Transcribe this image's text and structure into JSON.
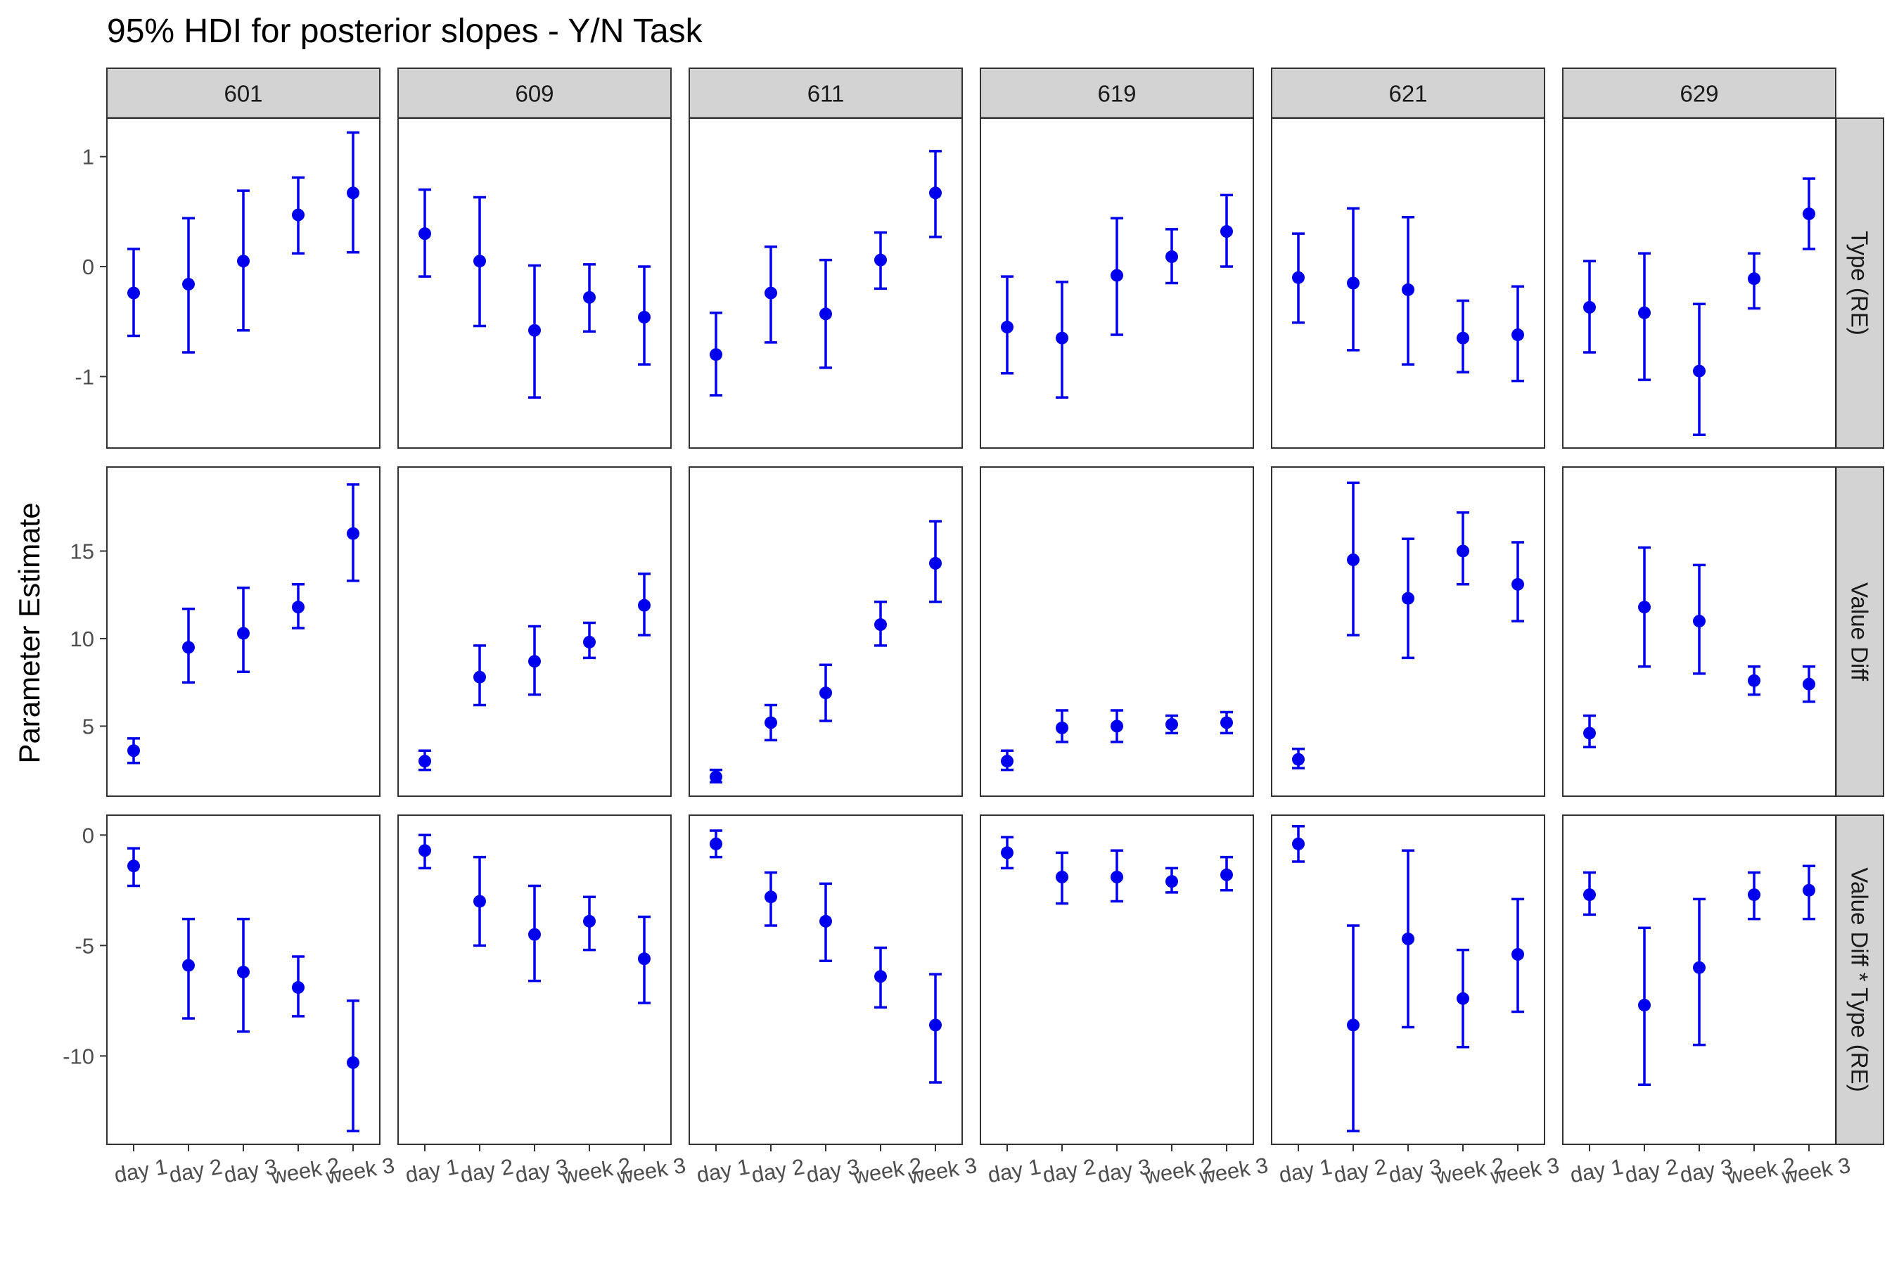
{
  "chart_data": {
    "type": "scatter",
    "title": "95% HDI for posterior slopes - Y/N Task",
    "ylabel": "Parameter Estimate",
    "xlabel": "",
    "facet_columns": [
      "601",
      "609",
      "611",
      "619",
      "621",
      "629"
    ],
    "facet_rows": [
      "Type (RE)",
      "Value Diff",
      "Value Diff * Type (RE)"
    ],
    "categories": [
      "day 1",
      "day 2",
      "day 3",
      "week 2",
      "week 3"
    ],
    "point_color": "#0000ee",
    "strip_color": "#d3d3d3",
    "grid": false,
    "rows": [
      {
        "name": "Type (RE)",
        "ylim": [
          -1.65,
          1.35
        ],
        "yticks": [
          1,
          0,
          -1
        ],
        "ytick_labels": [
          "1",
          "0",
          "-1"
        ],
        "panels": [
          {
            "column": "601",
            "points": [
              {
                "x": "day 1",
                "y": -0.24,
                "low": -0.63,
                "high": 0.16
              },
              {
                "x": "day 2",
                "y": -0.16,
                "low": -0.78,
                "high": 0.44
              },
              {
                "x": "day 3",
                "y": 0.05,
                "low": -0.58,
                "high": 0.69
              },
              {
                "x": "week 2",
                "y": 0.47,
                "low": 0.12,
                "high": 0.81
              },
              {
                "x": "week 3",
                "y": 0.67,
                "low": 0.13,
                "high": 1.22
              }
            ]
          },
          {
            "column": "609",
            "points": [
              {
                "x": "day 1",
                "y": 0.3,
                "low": -0.09,
                "high": 0.7
              },
              {
                "x": "day 2",
                "y": 0.05,
                "low": -0.54,
                "high": 0.63
              },
              {
                "x": "day 3",
                "y": -0.58,
                "low": -1.19,
                "high": 0.01
              },
              {
                "x": "week 2",
                "y": -0.28,
                "low": -0.59,
                "high": 0.02
              },
              {
                "x": "week 3",
                "y": -0.46,
                "low": -0.89,
                "high": 0.0
              }
            ]
          },
          {
            "column": "611",
            "points": [
              {
                "x": "day 1",
                "y": -0.8,
                "low": -1.17,
                "high": -0.42
              },
              {
                "x": "day 2",
                "y": -0.24,
                "low": -0.69,
                "high": 0.18
              },
              {
                "x": "day 3",
                "y": -0.43,
                "low": -0.92,
                "high": 0.06
              },
              {
                "x": "week 2",
                "y": 0.06,
                "low": -0.2,
                "high": 0.31
              },
              {
                "x": "week 3",
                "y": 0.67,
                "low": 0.27,
                "high": 1.05
              }
            ]
          },
          {
            "column": "619",
            "points": [
              {
                "x": "day 1",
                "y": -0.55,
                "low": -0.97,
                "high": -0.09
              },
              {
                "x": "day 2",
                "y": -0.65,
                "low": -1.19,
                "high": -0.14
              },
              {
                "x": "day 3",
                "y": -0.08,
                "low": -0.62,
                "high": 0.44
              },
              {
                "x": "week 2",
                "y": 0.09,
                "low": -0.15,
                "high": 0.34
              },
              {
                "x": "week 3",
                "y": 0.32,
                "low": 0.0,
                "high": 0.65
              }
            ]
          },
          {
            "column": "621",
            "points": [
              {
                "x": "day 1",
                "y": -0.1,
                "low": -0.51,
                "high": 0.3
              },
              {
                "x": "day 2",
                "y": -0.15,
                "low": -0.76,
                "high": 0.53
              },
              {
                "x": "day 3",
                "y": -0.21,
                "low": -0.89,
                "high": 0.45
              },
              {
                "x": "week 2",
                "y": -0.65,
                "low": -0.96,
                "high": -0.31
              },
              {
                "x": "week 3",
                "y": -0.62,
                "low": -1.04,
                "high": -0.18
              }
            ]
          },
          {
            "column": "629",
            "points": [
              {
                "x": "day 1",
                "y": -0.37,
                "low": -0.78,
                "high": 0.05
              },
              {
                "x": "day 2",
                "y": -0.42,
                "low": -1.03,
                "high": 0.12
              },
              {
                "x": "day 3",
                "y": -0.95,
                "low": -1.53,
                "high": -0.34
              },
              {
                "x": "week 2",
                "y": -0.11,
                "low": -0.38,
                "high": 0.12
              },
              {
                "x": "week 3",
                "y": 0.48,
                "low": 0.16,
                "high": 0.8
              }
            ]
          }
        ]
      },
      {
        "name": "Value Diff",
        "ylim": [
          1.0,
          19.8
        ],
        "yticks": [
          15,
          10,
          5
        ],
        "ytick_labels": [
          "15",
          "10",
          "5"
        ],
        "panels": [
          {
            "column": "601",
            "points": [
              {
                "x": "day 1",
                "y": 3.6,
                "low": 2.9,
                "high": 4.3
              },
              {
                "x": "day 2",
                "y": 9.5,
                "low": 7.5,
                "high": 11.7
              },
              {
                "x": "day 3",
                "y": 10.3,
                "low": 8.1,
                "high": 12.9
              },
              {
                "x": "week 2",
                "y": 11.8,
                "low": 10.6,
                "high": 13.1
              },
              {
                "x": "week 3",
                "y": 16.0,
                "low": 13.3,
                "high": 18.8
              }
            ]
          },
          {
            "column": "609",
            "points": [
              {
                "x": "day 1",
                "y": 3.0,
                "low": 2.5,
                "high": 3.6
              },
              {
                "x": "day 2",
                "y": 7.8,
                "low": 6.2,
                "high": 9.6
              },
              {
                "x": "day 3",
                "y": 8.7,
                "low": 6.8,
                "high": 10.7
              },
              {
                "x": "week 2",
                "y": 9.8,
                "low": 8.9,
                "high": 10.9
              },
              {
                "x": "week 3",
                "y": 11.9,
                "low": 10.2,
                "high": 13.7
              }
            ]
          },
          {
            "column": "611",
            "points": [
              {
                "x": "day 1",
                "y": 2.1,
                "low": 1.8,
                "high": 2.5
              },
              {
                "x": "day 2",
                "y": 5.2,
                "low": 4.2,
                "high": 6.2
              },
              {
                "x": "day 3",
                "y": 6.9,
                "low": 5.3,
                "high": 8.5
              },
              {
                "x": "week 2",
                "y": 10.8,
                "low": 9.6,
                "high": 12.1
              },
              {
                "x": "week 3",
                "y": 14.3,
                "low": 12.1,
                "high": 16.7
              }
            ]
          },
          {
            "column": "619",
            "points": [
              {
                "x": "day 1",
                "y": 3.0,
                "low": 2.5,
                "high": 3.6
              },
              {
                "x": "day 2",
                "y": 4.9,
                "low": 4.1,
                "high": 5.9
              },
              {
                "x": "day 3",
                "y": 5.0,
                "low": 4.1,
                "high": 5.9
              },
              {
                "x": "week 2",
                "y": 5.1,
                "low": 4.6,
                "high": 5.6
              },
              {
                "x": "week 3",
                "y": 5.2,
                "low": 4.6,
                "high": 5.8
              }
            ]
          },
          {
            "column": "621",
            "points": [
              {
                "x": "day 1",
                "y": 3.1,
                "low": 2.6,
                "high": 3.7
              },
              {
                "x": "day 2",
                "y": 14.5,
                "low": 10.2,
                "high": 18.9
              },
              {
                "x": "day 3",
                "y": 12.3,
                "low": 8.9,
                "high": 15.7
              },
              {
                "x": "week 2",
                "y": 15.0,
                "low": 13.1,
                "high": 17.2
              },
              {
                "x": "week 3",
                "y": 13.1,
                "low": 11.0,
                "high": 15.5
              }
            ]
          },
          {
            "column": "629",
            "points": [
              {
                "x": "day 1",
                "y": 4.6,
                "low": 3.8,
                "high": 5.6
              },
              {
                "x": "day 2",
                "y": 11.8,
                "low": 8.4,
                "high": 15.2
              },
              {
                "x": "day 3",
                "y": 11.0,
                "low": 8.0,
                "high": 14.2
              },
              {
                "x": "week 2",
                "y": 7.6,
                "low": 6.8,
                "high": 8.4
              },
              {
                "x": "week 3",
                "y": 7.4,
                "low": 6.4,
                "high": 8.4
              }
            ]
          }
        ]
      },
      {
        "name": "Value Diff * Type (RE)",
        "ylim": [
          -14.0,
          0.9
        ],
        "yticks": [
          0,
          -5,
          -10
        ],
        "ytick_labels": [
          "0",
          "-5",
          "-10"
        ],
        "panels": [
          {
            "column": "601",
            "points": [
              {
                "x": "day 1",
                "y": -1.4,
                "low": -2.3,
                "high": -0.6
              },
              {
                "x": "day 2",
                "y": -5.9,
                "low": -8.3,
                "high": -3.8
              },
              {
                "x": "day 3",
                "y": -6.2,
                "low": -8.9,
                "high": -3.8
              },
              {
                "x": "week 2",
                "y": -6.9,
                "low": -8.2,
                "high": -5.5
              },
              {
                "x": "week 3",
                "y": -10.3,
                "low": -13.4,
                "high": -7.5
              }
            ]
          },
          {
            "column": "609",
            "points": [
              {
                "x": "day 1",
                "y": -0.7,
                "low": -1.5,
                "high": 0.0
              },
              {
                "x": "day 2",
                "y": -3.0,
                "low": -5.0,
                "high": -1.0
              },
              {
                "x": "day 3",
                "y": -4.5,
                "low": -6.6,
                "high": -2.3
              },
              {
                "x": "week 2",
                "y": -3.9,
                "low": -5.2,
                "high": -2.8
              },
              {
                "x": "week 3",
                "y": -5.6,
                "low": -7.6,
                "high": -3.7
              }
            ]
          },
          {
            "column": "611",
            "points": [
              {
                "x": "day 1",
                "y": -0.4,
                "low": -1.0,
                "high": 0.2
              },
              {
                "x": "day 2",
                "y": -2.8,
                "low": -4.1,
                "high": -1.7
              },
              {
                "x": "day 3",
                "y": -3.9,
                "low": -5.7,
                "high": -2.2
              },
              {
                "x": "week 2",
                "y": -6.4,
                "low": -7.8,
                "high": -5.1
              },
              {
                "x": "week 3",
                "y": -8.6,
                "low": -11.2,
                "high": -6.3
              }
            ]
          },
          {
            "column": "619",
            "points": [
              {
                "x": "day 1",
                "y": -0.8,
                "low": -1.5,
                "high": -0.1
              },
              {
                "x": "day 2",
                "y": -1.9,
                "low": -3.1,
                "high": -0.8
              },
              {
                "x": "day 3",
                "y": -1.9,
                "low": -3.0,
                "high": -0.7
              },
              {
                "x": "week 2",
                "y": -2.1,
                "low": -2.6,
                "high": -1.5
              },
              {
                "x": "week 3",
                "y": -1.8,
                "low": -2.5,
                "high": -1.0
              }
            ]
          },
          {
            "column": "621",
            "points": [
              {
                "x": "day 1",
                "y": -0.4,
                "low": -1.2,
                "high": 0.4
              },
              {
                "x": "day 2",
                "y": -8.6,
                "low": -13.4,
                "high": -4.1
              },
              {
                "x": "day 3",
                "y": -4.7,
                "low": -8.7,
                "high": -0.7
              },
              {
                "x": "week 2",
                "y": -7.4,
                "low": -9.6,
                "high": -5.2
              },
              {
                "x": "week 3",
                "y": -5.4,
                "low": -8.0,
                "high": -2.9
              }
            ]
          },
          {
            "column": "629",
            "points": [
              {
                "x": "day 1",
                "y": -2.7,
                "low": -3.6,
                "high": -1.7
              },
              {
                "x": "day 2",
                "y": -7.7,
                "low": -11.3,
                "high": -4.2
              },
              {
                "x": "day 3",
                "y": -6.0,
                "low": -9.5,
                "high": -2.9
              },
              {
                "x": "week 2",
                "y": -2.7,
                "low": -3.8,
                "high": -1.7
              },
              {
                "x": "week 3",
                "y": -2.5,
                "low": -3.8,
                "high": -1.4
              }
            ]
          }
        ]
      }
    ]
  }
}
